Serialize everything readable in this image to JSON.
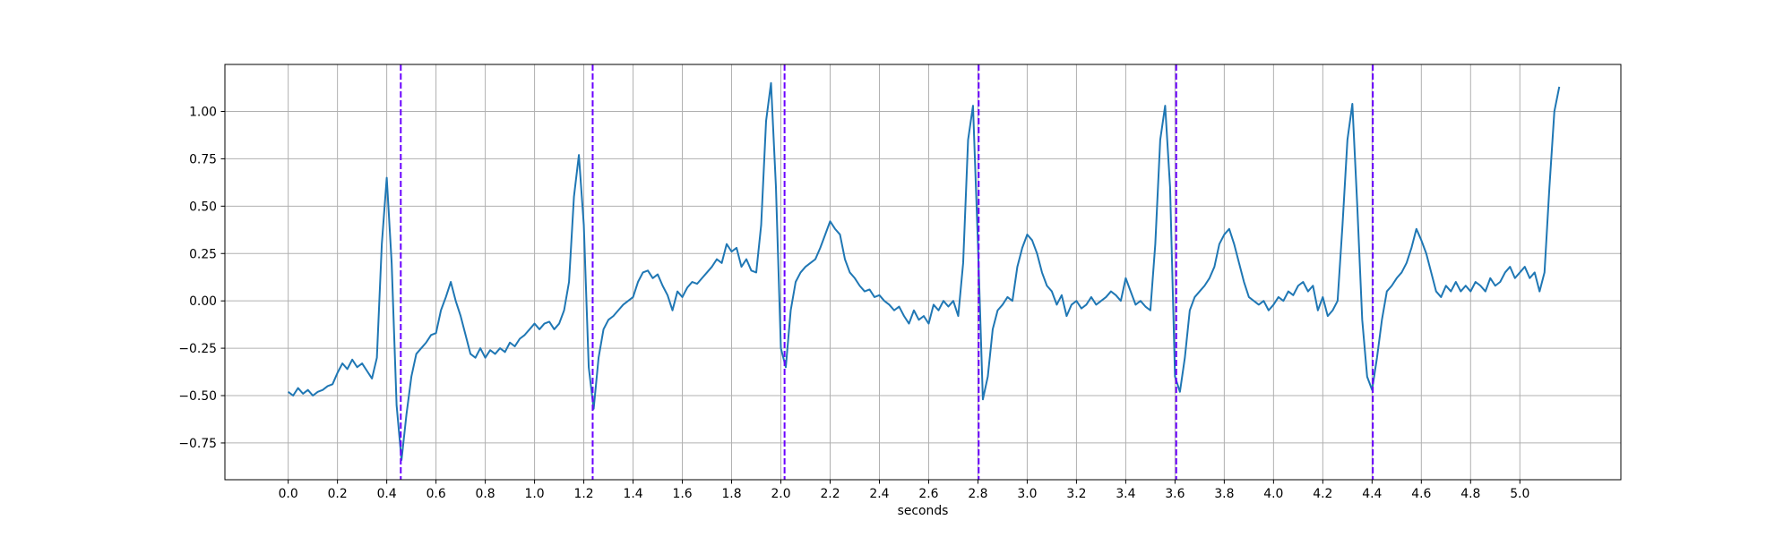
{
  "chart_data": {
    "type": "line",
    "xlabel": "seconds",
    "x": [
      0.0,
      0.02,
      0.04,
      0.06,
      0.08,
      0.1,
      0.12,
      0.14,
      0.16,
      0.18,
      0.2,
      0.22,
      0.24,
      0.26,
      0.28,
      0.3,
      0.32,
      0.34,
      0.36,
      0.38,
      0.4,
      0.42,
      0.44,
      0.46,
      0.48,
      0.5,
      0.52,
      0.54,
      0.56,
      0.58,
      0.6,
      0.62,
      0.64,
      0.66,
      0.68,
      0.7,
      0.72,
      0.74,
      0.76,
      0.78,
      0.8,
      0.82,
      0.84,
      0.86,
      0.88,
      0.9,
      0.92,
      0.94,
      0.96,
      0.98,
      1.0,
      1.02,
      1.04,
      1.06,
      1.08,
      1.1,
      1.12,
      1.14,
      1.16,
      1.18,
      1.2,
      1.22,
      1.24,
      1.26,
      1.28,
      1.3,
      1.32,
      1.34,
      1.36,
      1.38,
      1.4,
      1.42,
      1.44,
      1.46,
      1.48,
      1.5,
      1.52,
      1.54,
      1.56,
      1.58,
      1.6,
      1.62,
      1.64,
      1.66,
      1.68,
      1.7,
      1.72,
      1.74,
      1.76,
      1.78,
      1.8,
      1.82,
      1.84,
      1.86,
      1.88,
      1.9,
      1.92,
      1.94,
      1.96,
      1.98,
      2.0,
      2.02,
      2.04,
      2.06,
      2.08,
      2.1,
      2.12,
      2.14,
      2.16,
      2.18,
      2.2,
      2.22,
      2.24,
      2.26,
      2.28,
      2.3,
      2.32,
      2.34,
      2.36,
      2.38,
      2.4,
      2.42,
      2.44,
      2.46,
      2.48,
      2.5,
      2.52,
      2.54,
      2.56,
      2.58,
      2.6,
      2.62,
      2.64,
      2.66,
      2.68,
      2.7,
      2.72,
      2.74,
      2.76,
      2.78,
      2.8,
      2.82,
      2.84,
      2.86,
      2.88,
      2.9,
      2.92,
      2.94,
      2.96,
      2.98,
      3.0,
      3.02,
      3.04,
      3.06,
      3.08,
      3.1,
      3.12,
      3.14,
      3.16,
      3.18,
      3.2,
      3.22,
      3.24,
      3.26,
      3.28,
      3.3,
      3.32,
      3.34,
      3.36,
      3.38,
      3.4,
      3.42,
      3.44,
      3.46,
      3.48,
      3.5,
      3.52,
      3.54,
      3.56,
      3.58,
      3.6,
      3.62,
      3.64,
      3.66,
      3.68,
      3.7,
      3.72,
      3.74,
      3.76,
      3.78,
      3.8,
      3.82,
      3.84,
      3.86,
      3.88,
      3.9,
      3.92,
      3.94,
      3.96,
      3.98,
      4.0,
      4.02,
      4.04,
      4.06,
      4.08,
      4.1,
      4.12,
      4.14,
      4.16,
      4.18,
      4.2,
      4.22,
      4.24,
      4.26,
      4.28,
      4.3,
      4.32,
      4.34,
      4.36,
      4.38,
      4.4,
      4.42,
      4.44,
      4.46,
      4.48,
      4.5,
      4.52,
      4.54,
      4.56,
      4.58,
      4.6,
      4.62,
      4.64,
      4.66,
      4.68,
      4.7,
      4.72,
      4.74,
      4.76,
      4.78,
      4.8,
      4.82,
      4.84,
      4.86,
      4.88,
      4.9,
      4.92,
      4.94,
      4.96,
      4.98,
      5.0,
      5.02,
      5.04,
      5.06,
      5.08,
      5.1,
      5.12,
      5.14,
      5.16
    ],
    "series": [
      {
        "color": "#1f77b4",
        "values": [
          -0.48,
          -0.5,
          -0.46,
          -0.49,
          -0.47,
          -0.5,
          -0.48,
          -0.47,
          -0.45,
          -0.44,
          -0.38,
          -0.33,
          -0.36,
          -0.31,
          -0.35,
          -0.33,
          -0.37,
          -0.41,
          -0.3,
          0.3,
          0.65,
          0.2,
          -0.55,
          -0.84,
          -0.6,
          -0.4,
          -0.28,
          -0.25,
          -0.22,
          -0.18,
          -0.17,
          -0.05,
          0.02,
          0.1,
          0.0,
          -0.08,
          -0.18,
          -0.28,
          -0.3,
          -0.25,
          -0.3,
          -0.26,
          -0.28,
          -0.25,
          -0.27,
          -0.22,
          -0.24,
          -0.2,
          -0.18,
          -0.15,
          -0.12,
          -0.15,
          -0.12,
          -0.11,
          -0.15,
          -0.12,
          -0.05,
          0.1,
          0.55,
          0.77,
          0.4,
          -0.35,
          -0.57,
          -0.3,
          -0.15,
          -0.1,
          -0.08,
          -0.05,
          -0.02,
          0.0,
          0.02,
          0.1,
          0.15,
          0.16,
          0.12,
          0.14,
          0.08,
          0.03,
          -0.05,
          0.05,
          0.02,
          0.07,
          0.1,
          0.09,
          0.12,
          0.15,
          0.18,
          0.22,
          0.2,
          0.3,
          0.26,
          0.28,
          0.18,
          0.22,
          0.16,
          0.15,
          0.4,
          0.95,
          1.15,
          0.6,
          -0.25,
          -0.35,
          -0.05,
          0.1,
          0.15,
          0.18,
          0.2,
          0.22,
          0.28,
          0.35,
          0.42,
          0.38,
          0.35,
          0.22,
          0.15,
          0.12,
          0.08,
          0.05,
          0.06,
          0.02,
          0.03,
          0.0,
          -0.02,
          -0.05,
          -0.03,
          -0.08,
          -0.12,
          -0.05,
          -0.1,
          -0.08,
          -0.12,
          -0.02,
          -0.05,
          0.0,
          -0.03,
          0.0,
          -0.08,
          0.2,
          0.85,
          1.03,
          0.3,
          -0.52,
          -0.4,
          -0.15,
          -0.05,
          -0.02,
          0.02,
          0.0,
          0.18,
          0.28,
          0.35,
          0.32,
          0.25,
          0.15,
          0.08,
          0.05,
          -0.02,
          0.03,
          -0.08,
          -0.02,
          0.0,
          -0.04,
          -0.02,
          0.02,
          -0.02,
          0.0,
          0.02,
          0.05,
          0.03,
          0.0,
          0.12,
          0.05,
          -0.02,
          0.0,
          -0.03,
          -0.05,
          0.3,
          0.85,
          1.03,
          0.6,
          -0.4,
          -0.48,
          -0.3,
          -0.05,
          0.02,
          0.05,
          0.08,
          0.12,
          0.18,
          0.3,
          0.35,
          0.38,
          0.3,
          0.2,
          0.1,
          0.02,
          0.0,
          -0.02,
          0.0,
          -0.05,
          -0.02,
          0.02,
          0.0,
          0.05,
          0.03,
          0.08,
          0.1,
          0.05,
          0.08,
          -0.05,
          0.02,
          -0.08,
          -0.05,
          0.0,
          0.4,
          0.85,
          1.04,
          0.5,
          -0.1,
          -0.4,
          -0.47,
          -0.3,
          -0.1,
          0.05,
          0.08,
          0.12,
          0.15,
          0.2,
          0.28,
          0.38,
          0.32,
          0.25,
          0.15,
          0.05,
          0.02,
          0.08,
          0.05,
          0.1,
          0.05,
          0.08,
          0.05,
          0.1,
          0.08,
          0.05,
          0.12,
          0.08,
          0.1,
          0.15,
          0.18,
          0.12,
          0.15,
          0.18,
          0.12,
          0.15,
          0.05,
          0.15,
          0.6,
          1.0,
          1.13
        ]
      }
    ],
    "vlines": [
      0.457,
      1.236,
      2.015,
      2.803,
      3.605,
      4.403
    ],
    "vline_color": "#6a00ff",
    "vline_style": "dashed",
    "xlim": [
      -0.257,
      5.41
    ],
    "ylim": [
      -0.944,
      1.248
    ],
    "xticks": [
      {
        "value": 0,
        "label": "0.0"
      },
      0.2,
      0.4,
      0.6,
      0.8,
      {
        "value": 1,
        "label": "1.0"
      },
      1.2,
      1.4,
      1.6,
      1.8,
      {
        "value": 2,
        "label": "2.0"
      },
      2.2,
      2.4,
      2.6,
      2.8,
      {
        "value": 3,
        "label": "3.0"
      },
      3.2,
      3.4,
      3.6,
      3.8,
      {
        "value": 4,
        "label": "4.0"
      },
      4.2,
      4.4,
      4.6,
      4.8,
      {
        "value": 5,
        "label": "5.0"
      }
    ],
    "yticks": [
      {
        "value": -0.75,
        "label": "−0.75"
      },
      {
        "value": -0.5,
        "label": "−0.50"
      },
      {
        "value": -0.25,
        "label": "−0.25"
      },
      {
        "value": 0,
        "label": "0.00"
      },
      {
        "value": 0.25,
        "label": "0.25"
      },
      {
        "value": 0.5,
        "label": "0.50"
      },
      {
        "value": 0.75,
        "label": "0.75"
      },
      {
        "value": 1,
        "label": "1.00"
      }
    ],
    "grid": true
  }
}
